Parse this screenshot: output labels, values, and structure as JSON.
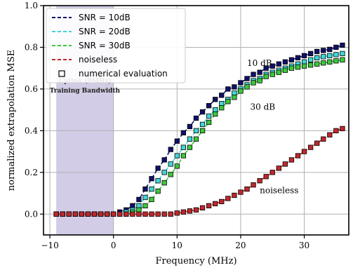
{
  "chart_data": {
    "type": "line",
    "title": "",
    "xlabel": "Frequency (MHz)",
    "ylabel": "normalized extrapolation MSE",
    "xlim": [
      -11,
      37
    ],
    "ylim": [
      -0.1,
      1.0
    ],
    "xticks": [
      -10,
      0,
      10,
      20,
      30
    ],
    "xtick_labels": [
      "−10",
      "0",
      "10",
      "20",
      "30"
    ],
    "yticks": [
      0.0,
      0.2,
      0.4,
      0.6,
      0.8,
      1.0
    ],
    "ytick_labels": [
      "0.0",
      "0.2",
      "0.4",
      "0.6",
      "0.8",
      "1.0"
    ],
    "grid": true,
    "legend_position": "top-left",
    "shaded_region": {
      "x_range": [
        -9,
        0
      ],
      "label_lines": [
        "Uplink (9MHz)",
        "Training Bandwidth"
      ],
      "color": "#d2cce6"
    },
    "annotations": [
      {
        "text": "10 dB",
        "x": 21,
        "y": 0.71
      },
      {
        "text": "30 dB",
        "x": 21.5,
        "y": 0.5
      },
      {
        "text": "noiseless",
        "x": 23,
        "y": 0.1
      }
    ],
    "x": [
      -9,
      -8,
      -7,
      -6,
      -5,
      -4,
      -3,
      -2,
      -1,
      0,
      1,
      2,
      3,
      4,
      5,
      6,
      7,
      8,
      9,
      10,
      11,
      12,
      13,
      14,
      15,
      16,
      17,
      18,
      19,
      20,
      21,
      22,
      23,
      24,
      25,
      26,
      27,
      28,
      29,
      30,
      31,
      32,
      33,
      34,
      35,
      36
    ],
    "series": [
      {
        "name": "SNR = 10dB",
        "color": "#10106b",
        "style": "dashed",
        "values": [
          0.0,
          0.0,
          0.0,
          0.0,
          0.0,
          0.0,
          0.0,
          0.0,
          0.0,
          0.0,
          0.01,
          0.02,
          0.04,
          0.07,
          0.12,
          0.17,
          0.22,
          0.26,
          0.31,
          0.35,
          0.39,
          0.42,
          0.46,
          0.49,
          0.52,
          0.55,
          0.57,
          0.6,
          0.61,
          0.63,
          0.65,
          0.67,
          0.68,
          0.7,
          0.71,
          0.72,
          0.73,
          0.74,
          0.75,
          0.76,
          0.77,
          0.78,
          0.785,
          0.79,
          0.8,
          0.81
        ]
      },
      {
        "name": "SNR = 20dB",
        "color": "#40d6d6",
        "style": "dashed",
        "values": [
          0.0,
          0.0,
          0.0,
          0.0,
          0.0,
          0.0,
          0.0,
          0.0,
          0.0,
          0.0,
          0.0,
          0.01,
          0.02,
          0.04,
          0.08,
          0.12,
          0.16,
          0.2,
          0.24,
          0.28,
          0.32,
          0.36,
          0.4,
          0.43,
          0.47,
          0.5,
          0.53,
          0.55,
          0.58,
          0.6,
          0.62,
          0.64,
          0.65,
          0.67,
          0.68,
          0.69,
          0.7,
          0.71,
          0.72,
          0.73,
          0.74,
          0.75,
          0.755,
          0.76,
          0.765,
          0.77
        ]
      },
      {
        "name": "SNR = 30dB",
        "color": "#3cc83c",
        "style": "dashed",
        "values": [
          0.0,
          0.0,
          0.0,
          0.0,
          0.0,
          0.0,
          0.0,
          0.0,
          0.0,
          0.0,
          0.0,
          0.0,
          0.01,
          0.02,
          0.04,
          0.07,
          0.11,
          0.15,
          0.19,
          0.23,
          0.28,
          0.32,
          0.36,
          0.4,
          0.44,
          0.48,
          0.51,
          0.54,
          0.56,
          0.59,
          0.61,
          0.63,
          0.64,
          0.66,
          0.67,
          0.68,
          0.69,
          0.7,
          0.705,
          0.71,
          0.715,
          0.72,
          0.725,
          0.73,
          0.735,
          0.74
        ]
      },
      {
        "name": "noiseless",
        "color": "#c0282d",
        "style": "dashed",
        "values": [
          0.0,
          0.0,
          0.0,
          0.0,
          0.0,
          0.0,
          0.0,
          0.0,
          0.0,
          0.0,
          0.0,
          0.0,
          0.0,
          0.0,
          0.0,
          0.0,
          0.0,
          0.0,
          0.0,
          0.005,
          0.01,
          0.015,
          0.02,
          0.03,
          0.04,
          0.05,
          0.06,
          0.075,
          0.09,
          0.105,
          0.12,
          0.14,
          0.16,
          0.18,
          0.2,
          0.22,
          0.24,
          0.26,
          0.28,
          0.3,
          0.32,
          0.34,
          0.36,
          0.38,
          0.4,
          0.41
        ]
      }
    ],
    "markers": {
      "name": "numerical evaluation",
      "shape": "square",
      "edge_color": "#000000"
    }
  }
}
